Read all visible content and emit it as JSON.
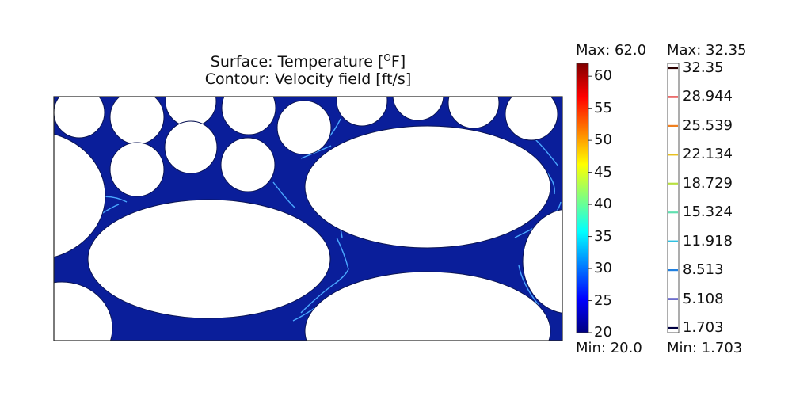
{
  "title": {
    "line1_prefix": "Surface: Temperature [",
    "line1_sup": "O",
    "line1_suffix": "F]",
    "line2": "Contour: Velocity field [ft/s]"
  },
  "temperature_colorbar": {
    "max_label": "Max: 62.0",
    "min_label": "Min: 20.0",
    "range": [
      20,
      62
    ],
    "ticks": [
      "60",
      "55",
      "50",
      "45",
      "40",
      "35",
      "30",
      "25",
      "20"
    ],
    "colormap": [
      "#00007f",
      "#0000ff",
      "#007fff",
      "#00ffff",
      "#7fff7f",
      "#ffff00",
      "#ff7f00",
      "#ff0000",
      "#7f0000"
    ]
  },
  "velocity_contour_legend": {
    "max_label": "Max: 32.35",
    "min_label": "Min: 1.703",
    "levels": [
      {
        "value": "32.35",
        "color": "#2a0000"
      },
      {
        "value": "28.944",
        "color": "#e02020"
      },
      {
        "value": "25.539",
        "color": "#f08020"
      },
      {
        "value": "22.134",
        "color": "#e8c020"
      },
      {
        "value": "18.729",
        "color": "#b8e040"
      },
      {
        "value": "15.324",
        "color": "#60e0b0"
      },
      {
        "value": "11.918",
        "color": "#30c0e0"
      },
      {
        "value": "8.513",
        "color": "#2080e0"
      },
      {
        "value": "5.108",
        "color": "#2020b0"
      },
      {
        "value": "1.703",
        "color": "#000040"
      }
    ]
  },
  "colors": {
    "fluid": "#0a1e9a",
    "fluid_light": "#1432c0",
    "contour": "#4aa8ff",
    "frame": "#222222"
  }
}
